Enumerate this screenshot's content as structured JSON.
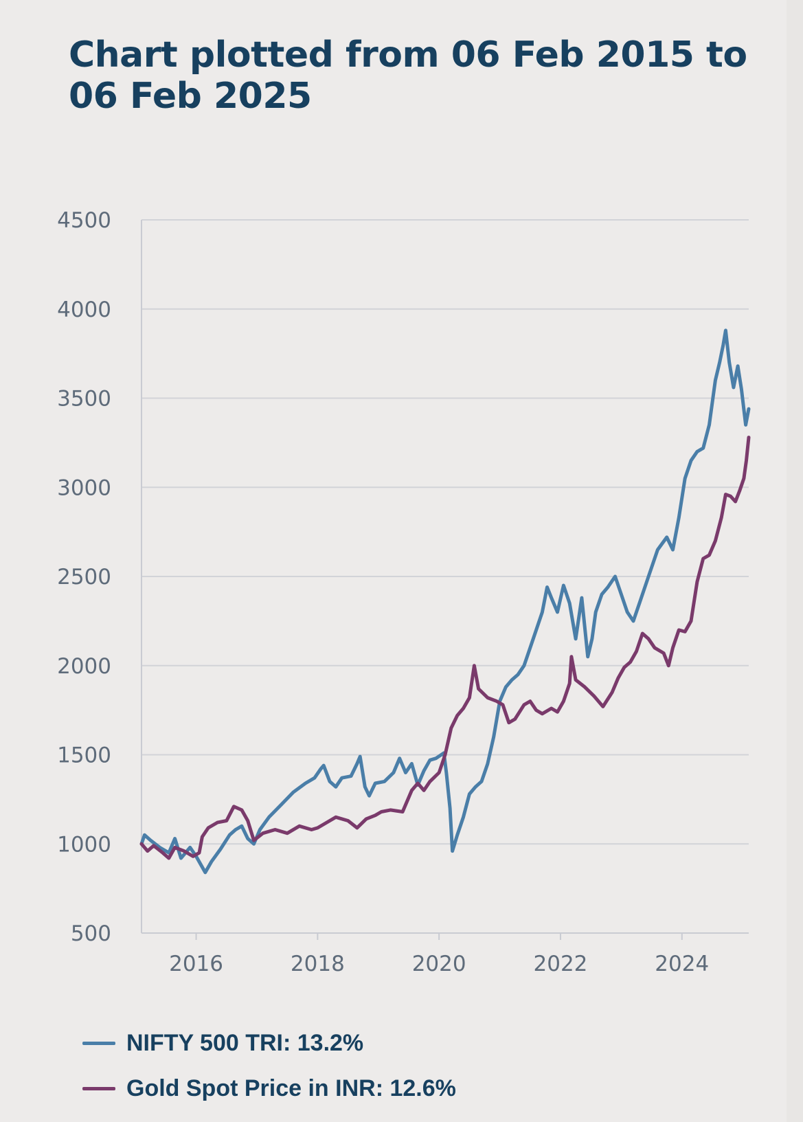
{
  "chart_data": {
    "type": "line",
    "title": "Chart plotted from 06 Feb 2015 to 06 Feb 2025",
    "xlabel": "",
    "ylabel": "",
    "xlim": [
      2015.1,
      2025.1
    ],
    "ylim": [
      500,
      4500
    ],
    "yticks": [
      500,
      1000,
      1500,
      2000,
      2500,
      3000,
      3500,
      4000,
      4500
    ],
    "xticks": [
      2016,
      2018,
      2020,
      2022,
      2024
    ],
    "grid": true,
    "legend_position": "bottom-left",
    "series": [
      {
        "name": "NIFTY 500 TRI: 13.2%",
        "color": "#4a7ea8",
        "points": [
          [
            2015.1,
            1000
          ],
          [
            2015.15,
            1050
          ],
          [
            2015.25,
            1020
          ],
          [
            2015.4,
            980
          ],
          [
            2015.55,
            950
          ],
          [
            2015.65,
            1030
          ],
          [
            2015.75,
            920
          ],
          [
            2015.9,
            980
          ],
          [
            2016.0,
            930
          ],
          [
            2016.1,
            870
          ],
          [
            2016.15,
            840
          ],
          [
            2016.25,
            900
          ],
          [
            2016.4,
            970
          ],
          [
            2016.55,
            1050
          ],
          [
            2016.65,
            1080
          ],
          [
            2016.75,
            1100
          ],
          [
            2016.85,
            1030
          ],
          [
            2016.95,
            1000
          ],
          [
            2017.05,
            1080
          ],
          [
            2017.2,
            1150
          ],
          [
            2017.4,
            1220
          ],
          [
            2017.6,
            1290
          ],
          [
            2017.8,
            1340
          ],
          [
            2017.95,
            1370
          ],
          [
            2018.05,
            1420
          ],
          [
            2018.1,
            1440
          ],
          [
            2018.2,
            1350
          ],
          [
            2018.3,
            1320
          ],
          [
            2018.4,
            1370
          ],
          [
            2018.55,
            1380
          ],
          [
            2018.65,
            1450
          ],
          [
            2018.7,
            1490
          ],
          [
            2018.78,
            1320
          ],
          [
            2018.85,
            1270
          ],
          [
            2018.95,
            1340
          ],
          [
            2019.1,
            1350
          ],
          [
            2019.25,
            1400
          ],
          [
            2019.35,
            1480
          ],
          [
            2019.45,
            1400
          ],
          [
            2019.55,
            1450
          ],
          [
            2019.65,
            1330
          ],
          [
            2019.75,
            1410
          ],
          [
            2019.85,
            1470
          ],
          [
            2019.95,
            1480
          ],
          [
            2020.08,
            1510
          ],
          [
            2020.12,
            1400
          ],
          [
            2020.18,
            1200
          ],
          [
            2020.22,
            960
          ],
          [
            2020.3,
            1050
          ],
          [
            2020.4,
            1150
          ],
          [
            2020.5,
            1280
          ],
          [
            2020.6,
            1320
          ],
          [
            2020.7,
            1350
          ],
          [
            2020.8,
            1450
          ],
          [
            2020.9,
            1600
          ],
          [
            2021.0,
            1800
          ],
          [
            2021.1,
            1880
          ],
          [
            2021.2,
            1920
          ],
          [
            2021.3,
            1950
          ],
          [
            2021.4,
            2000
          ],
          [
            2021.5,
            2100
          ],
          [
            2021.6,
            2200
          ],
          [
            2021.7,
            2300
          ],
          [
            2021.78,
            2440
          ],
          [
            2021.85,
            2380
          ],
          [
            2021.95,
            2300
          ],
          [
            2022.05,
            2450
          ],
          [
            2022.15,
            2350
          ],
          [
            2022.25,
            2150
          ],
          [
            2022.35,
            2380
          ],
          [
            2022.45,
            2050
          ],
          [
            2022.52,
            2150
          ],
          [
            2022.58,
            2300
          ],
          [
            2022.68,
            2400
          ],
          [
            2022.78,
            2440
          ],
          [
            2022.9,
            2500
          ],
          [
            2023.0,
            2400
          ],
          [
            2023.1,
            2300
          ],
          [
            2023.2,
            2250
          ],
          [
            2023.3,
            2350
          ],
          [
            2023.45,
            2500
          ],
          [
            2023.6,
            2650
          ],
          [
            2023.75,
            2720
          ],
          [
            2023.85,
            2650
          ],
          [
            2023.95,
            2830
          ],
          [
            2024.05,
            3050
          ],
          [
            2024.15,
            3150
          ],
          [
            2024.25,
            3200
          ],
          [
            2024.35,
            3220
          ],
          [
            2024.45,
            3350
          ],
          [
            2024.55,
            3600
          ],
          [
            2024.62,
            3700
          ],
          [
            2024.68,
            3800
          ],
          [
            2024.72,
            3880
          ],
          [
            2024.78,
            3700
          ],
          [
            2024.85,
            3560
          ],
          [
            2024.92,
            3680
          ],
          [
            2024.98,
            3550
          ],
          [
            2025.05,
            3350
          ],
          [
            2025.1,
            3440
          ]
        ]
      },
      {
        "name": "Gold Spot Price in INR: 12.6%",
        "color": "#7a3a6b",
        "points": [
          [
            2015.1,
            1000
          ],
          [
            2015.2,
            960
          ],
          [
            2015.3,
            990
          ],
          [
            2015.45,
            950
          ],
          [
            2015.55,
            920
          ],
          [
            2015.65,
            980
          ],
          [
            2015.8,
            960
          ],
          [
            2015.95,
            930
          ],
          [
            2016.05,
            950
          ],
          [
            2016.1,
            1040
          ],
          [
            2016.2,
            1090
          ],
          [
            2016.35,
            1120
          ],
          [
            2016.5,
            1130
          ],
          [
            2016.62,
            1210
          ],
          [
            2016.75,
            1190
          ],
          [
            2016.85,
            1130
          ],
          [
            2016.95,
            1020
          ],
          [
            2017.1,
            1060
          ],
          [
            2017.3,
            1080
          ],
          [
            2017.5,
            1060
          ],
          [
            2017.7,
            1100
          ],
          [
            2017.9,
            1080
          ],
          [
            2018.0,
            1090
          ],
          [
            2018.15,
            1120
          ],
          [
            2018.3,
            1150
          ],
          [
            2018.5,
            1130
          ],
          [
            2018.65,
            1090
          ],
          [
            2018.8,
            1140
          ],
          [
            2018.95,
            1160
          ],
          [
            2019.05,
            1180
          ],
          [
            2019.2,
            1190
          ],
          [
            2019.4,
            1180
          ],
          [
            2019.55,
            1300
          ],
          [
            2019.65,
            1340
          ],
          [
            2019.75,
            1300
          ],
          [
            2019.85,
            1350
          ],
          [
            2020.0,
            1400
          ],
          [
            2020.1,
            1500
          ],
          [
            2020.2,
            1650
          ],
          [
            2020.3,
            1720
          ],
          [
            2020.4,
            1760
          ],
          [
            2020.5,
            1820
          ],
          [
            2020.58,
            2000
          ],
          [
            2020.65,
            1870
          ],
          [
            2020.8,
            1820
          ],
          [
            2020.95,
            1800
          ],
          [
            2021.05,
            1780
          ],
          [
            2021.15,
            1680
          ],
          [
            2021.25,
            1700
          ],
          [
            2021.4,
            1780
          ],
          [
            2021.5,
            1800
          ],
          [
            2021.6,
            1750
          ],
          [
            2021.7,
            1730
          ],
          [
            2021.85,
            1760
          ],
          [
            2021.95,
            1740
          ],
          [
            2022.05,
            1800
          ],
          [
            2022.15,
            1900
          ],
          [
            2022.18,
            2050
          ],
          [
            2022.25,
            1920
          ],
          [
            2022.4,
            1880
          ],
          [
            2022.55,
            1830
          ],
          [
            2022.7,
            1770
          ],
          [
            2022.85,
            1850
          ],
          [
            2022.95,
            1930
          ],
          [
            2023.05,
            1990
          ],
          [
            2023.15,
            2020
          ],
          [
            2023.25,
            2080
          ],
          [
            2023.35,
            2180
          ],
          [
            2023.45,
            2150
          ],
          [
            2023.55,
            2100
          ],
          [
            2023.7,
            2070
          ],
          [
            2023.78,
            2000
          ],
          [
            2023.85,
            2100
          ],
          [
            2023.95,
            2200
          ],
          [
            2024.05,
            2190
          ],
          [
            2024.15,
            2250
          ],
          [
            2024.25,
            2470
          ],
          [
            2024.35,
            2600
          ],
          [
            2024.45,
            2620
          ],
          [
            2024.55,
            2700
          ],
          [
            2024.65,
            2830
          ],
          [
            2024.72,
            2960
          ],
          [
            2024.8,
            2950
          ],
          [
            2024.88,
            2920
          ],
          [
            2024.95,
            2980
          ],
          [
            2025.02,
            3050
          ],
          [
            2025.06,
            3150
          ],
          [
            2025.1,
            3280
          ]
        ]
      }
    ]
  }
}
